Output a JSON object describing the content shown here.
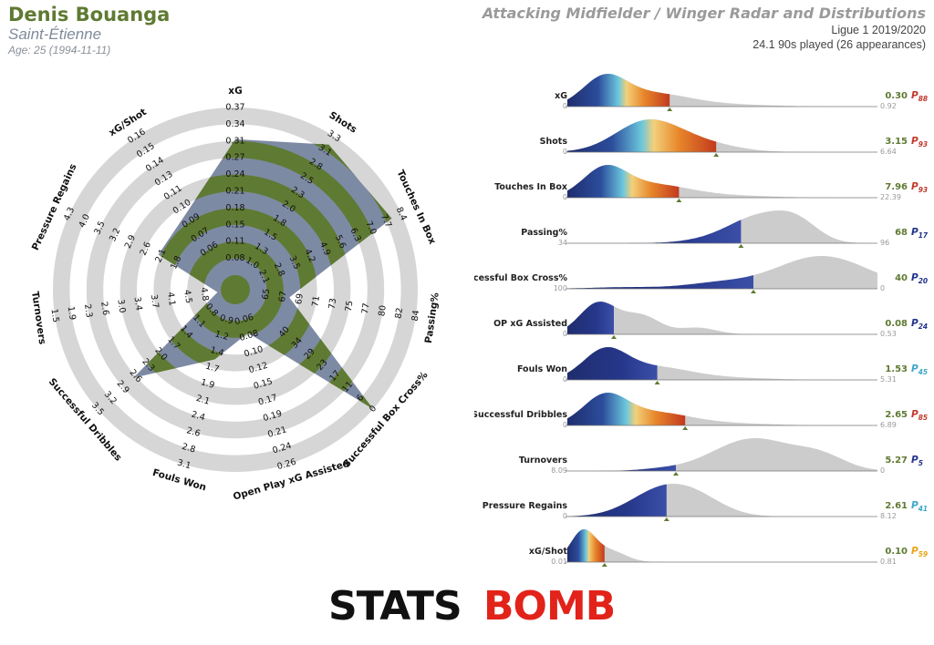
{
  "header": {
    "player": "Denis Bouanga",
    "team": "Saint-Étienne",
    "age": "Age: 25 (1994-11-11)",
    "title": "Attacking Midfielder / Winger Radar and Distributions",
    "league": "Ligue 1 2019/2020",
    "played": "24.1 90s played (26 appearances)"
  },
  "brand": {
    "part1": "STATS",
    "part2": "BOMB"
  },
  "colors": {
    "radar_olive": "#5f7a32",
    "radar_slate": "#7d8aa3",
    "ring_grey": "#d6d6d6",
    "dist_grey": "#cccccc",
    "brand_red": "#e2231a",
    "brand_black": "#111111"
  },
  "chart_data": [
    {
      "type": "radar",
      "axes": [
        {
          "label": "xG",
          "ticks": [
            "0.08",
            "0.11",
            "0.15",
            "0.18",
            "0.21",
            "0.24",
            "0.27",
            "0.31",
            "0.34",
            "0.37"
          ],
          "value": 0.3,
          "min": 0.0,
          "max": 0.37
        },
        {
          "label": "Shots",
          "ticks": [
            "1.0",
            "1.3",
            "1.5",
            "1.8",
            "2.0",
            "2.3",
            "2.5",
            "2.8",
            "3.1",
            "3.3"
          ],
          "value": 3.15,
          "min": 0.7,
          "max": 3.3
        },
        {
          "label": "Touches In Box",
          "ticks": [
            "2.1",
            "2.8",
            "3.5",
            "4.2",
            "4.9",
            "5.6",
            "6.3",
            "7.0",
            "7.7",
            "8.4"
          ],
          "value": 7.96,
          "min": 1.4,
          "max": 8.4
        },
        {
          "label": "Passing%",
          "ticks": [
            "65",
            "67",
            "69",
            "71",
            "73",
            "75",
            "77",
            "80",
            "82",
            "84"
          ],
          "value": 68,
          "min": 63,
          "max": 84
        },
        {
          "label": "Successful Box Cross%",
          "ticks": [
            "40",
            "34",
            "29",
            "23",
            "17",
            "11",
            "6",
            "0"
          ],
          "value": 40,
          "min": 0,
          "max": 40,
          "reversed": true
        },
        {
          "label": "Open Play xG Assisted",
          "ticks": [
            "0.06",
            "0.08",
            "0.10",
            "0.12",
            "0.15",
            "0.17",
            "0.19",
            "0.21",
            "0.24",
            "0.26"
          ],
          "value": 0.08,
          "min": 0.04,
          "max": 0.26
        },
        {
          "label": "Fouls Won",
          "ticks": [
            "0.9",
            "1.2",
            "1.4",
            "1.7",
            "1.9",
            "2.1",
            "2.4",
            "2.6",
            "2.8",
            "3.1"
          ],
          "value": 1.53,
          "min": 0.7,
          "max": 3.1
        },
        {
          "label": "Successful Dribbles",
          "ticks": [
            "0.8",
            "1.1",
            "1.4",
            "1.7",
            "2.0",
            "2.3",
            "2.6",
            "2.9",
            "3.2",
            "3.5"
          ],
          "value": 2.65,
          "min": 0.5,
          "max": 3.5
        },
        {
          "label": "Turnovers",
          "ticks": [
            "4.8",
            "4.5",
            "4.1",
            "3.7",
            "3.4",
            "3.0",
            "2.6",
            "2.3",
            "1.9",
            "1.5"
          ],
          "value": 5.27,
          "min": 5.2,
          "max": 1.5,
          "reversed": true
        },
        {
          "label": "Pressure Regains",
          "ticks": [
            "1.8",
            "2.1",
            "2.6",
            "2.9",
            "3.2",
            "3.5",
            "4.0",
            "4.3"
          ],
          "value": 2.61,
          "min": 1.4,
          "max": 4.3
        },
        {
          "label": "xG/Shot",
          "ticks": [
            "0.06",
            "0.07",
            "0.09",
            "0.10",
            "0.11",
            "0.13",
            "0.14",
            "0.15",
            "0.16"
          ],
          "value": 0.1,
          "min": 0.05,
          "max": 0.16
        }
      ]
    },
    {
      "type": "area",
      "name": "distributions",
      "rows": [
        {
          "label": "xG",
          "min_label": "0",
          "max_label": "0.92",
          "value": "0.30",
          "percentile": "88",
          "cut": 0.33,
          "style": "full",
          "shape": "rightskew"
        },
        {
          "label": "Shots",
          "min_label": "0",
          "max_label": "6.64",
          "value": "3.15",
          "percentile": "93",
          "cut": 0.48,
          "style": "full",
          "shape": "wide"
        },
        {
          "label": "Touches In Box",
          "min_label": "0",
          "max_label": "22.39",
          "value": "7.96",
          "percentile": "93",
          "cut": 0.36,
          "style": "full",
          "shape": "rightskew"
        },
        {
          "label": "Passing%",
          "min_label": "34",
          "max_label": "96",
          "value": "68",
          "percentile": "17",
          "cut": 0.56,
          "style": "blue",
          "shape": "leftskew"
        },
        {
          "label": "Successful Box Cross%",
          "min_label": "100",
          "max_label": "0",
          "value": "40",
          "percentile": "20",
          "cut": 0.6,
          "style": "blue",
          "shape": "flat"
        },
        {
          "label": "OP xG Assisted",
          "min_label": "0",
          "max_label": "0.53",
          "value": "0.08",
          "percentile": "24",
          "cut": 0.15,
          "style": "blue",
          "shape": "early"
        },
        {
          "label": "Fouls Won",
          "min_label": "0",
          "max_label": "5.31",
          "value": "1.53",
          "percentile": "45",
          "cut": 0.29,
          "style": "blue",
          "shape": "rightskew"
        },
        {
          "label": "Successful Dribbles",
          "min_label": "0",
          "max_label": "6.89",
          "value": "2.65",
          "percentile": "85",
          "cut": 0.38,
          "style": "full",
          "shape": "rightskew"
        },
        {
          "label": "Turnovers",
          "min_label": "8.09",
          "max_label": "0",
          "value": "5.27",
          "percentile": "5",
          "cut": 0.35,
          "style": "blue",
          "shape": "turnover"
        },
        {
          "label": "Pressure Regains",
          "min_label": "0",
          "max_label": "8.12",
          "value": "2.61",
          "percentile": "41",
          "cut": 0.32,
          "style": "blue",
          "shape": "mid"
        },
        {
          "label": "xG/Shot",
          "min_label": "0.01",
          "max_label": "0.81",
          "value": "0.10",
          "percentile": "59",
          "cut": 0.12,
          "style": "full",
          "shape": "spike"
        }
      ]
    }
  ]
}
